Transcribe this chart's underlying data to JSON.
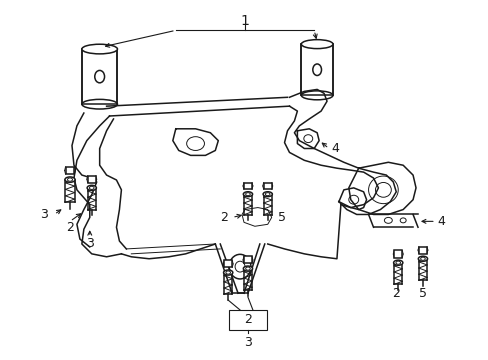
{
  "background_color": "#ffffff",
  "line_color": "#1a1a1a",
  "fig_width": 4.89,
  "fig_height": 3.6,
  "dpi": 100,
  "anno_fontsize": 9,
  "lw": 1.1,
  "lw_thin": 0.7,
  "lw_call": 0.8
}
